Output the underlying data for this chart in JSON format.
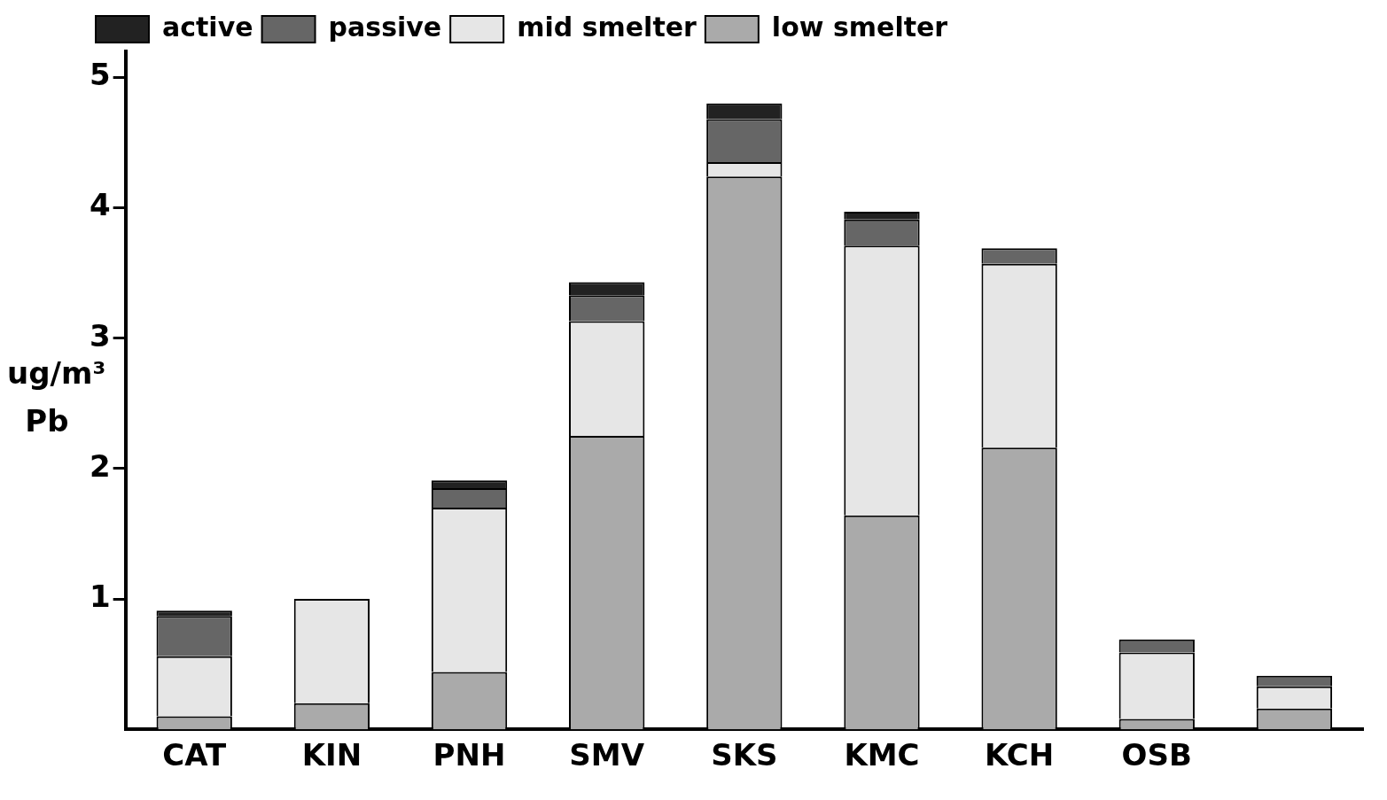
{
  "chart_data": {
    "type": "bar",
    "stacked": true,
    "ylabel": "ug/m³ Pb",
    "categories": [
      "CAT",
      "KIN",
      "PNH",
      "SMV",
      "SKS",
      "KMC",
      "KCH",
      "OSB",
      null
    ],
    "series": [
      {
        "name": "low smelter",
        "color": "#aaaaaa",
        "values": [
          0.1,
          0.2,
          0.44,
          2.25,
          4.24,
          1.64,
          2.16,
          0.08,
          0.16
        ]
      },
      {
        "name": "mid smelter",
        "color": "#e6e6e6",
        "values": [
          0.46,
          0.8,
          1.26,
          0.88,
          0.11,
          2.07,
          1.41,
          0.51,
          0.17
        ]
      },
      {
        "name": "passive",
        "color": "#666666",
        "values": [
          0.31,
          0,
          0.15,
          0.2,
          0.33,
          0.2,
          0.12,
          0.1,
          0.08
        ]
      },
      {
        "name": "active",
        "color": "#222222",
        "values": [
          0.04,
          0,
          0.06,
          0.1,
          0.12,
          0.06,
          0,
          0,
          0
        ]
      }
    ],
    "ylim": [
      0,
      5.2
    ],
    "yticks": [
      1,
      2,
      3,
      4,
      5
    ],
    "grid": false,
    "legend": "top left"
  }
}
